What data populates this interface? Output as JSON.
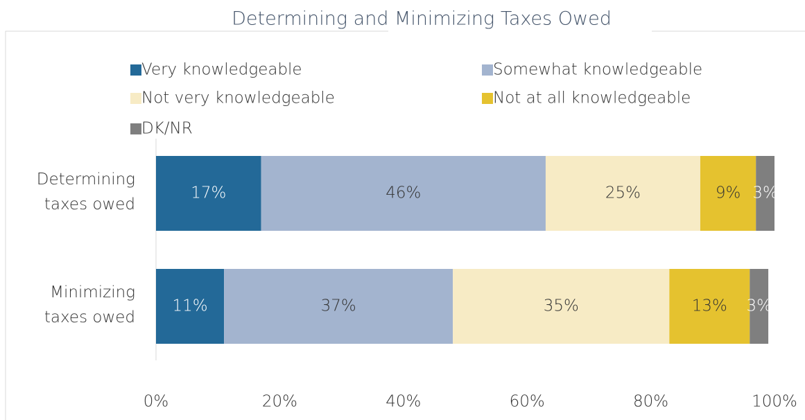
{
  "chart_data": {
    "type": "stacked-bar-horizontal",
    "title": "Determining and Minimizing Taxes Owed",
    "categories": [
      "Determining taxes owed",
      "Minimizing taxes owed"
    ],
    "series": [
      {
        "name": "Very knowledgeable",
        "color": "#236998",
        "values": [
          17,
          11
        ],
        "value_labels": [
          "17%",
          "11%"
        ]
      },
      {
        "name": "Somewhat knowledgeable",
        "color": "#a3b4cf",
        "values": [
          46,
          37
        ],
        "value_labels": [
          "46%",
          "37%"
        ]
      },
      {
        "name": "Not very knowledgeable",
        "color": "#f7ebc5",
        "values": [
          25,
          35
        ],
        "value_labels": [
          "25%",
          "35%"
        ]
      },
      {
        "name": "Not at all knowledgeable",
        "color": "#e5c22f",
        "values": [
          9,
          13
        ],
        "value_labels": [
          "9%",
          "13%"
        ]
      },
      {
        "name": "DK/NR",
        "color": "#7f7f7f",
        "values": [
          3,
          3
        ],
        "value_labels": [
          "3%",
          "3%"
        ]
      }
    ],
    "xlim": [
      0,
      100
    ],
    "xticks": [
      {
        "value": 0,
        "label": "0%"
      },
      {
        "value": 20,
        "label": "20%"
      },
      {
        "value": 40,
        "label": "40%"
      },
      {
        "value": 60,
        "label": "60%"
      },
      {
        "value": 80,
        "label": "80%"
      },
      {
        "value": 100,
        "label": "100%"
      }
    ],
    "legend": "top"
  }
}
